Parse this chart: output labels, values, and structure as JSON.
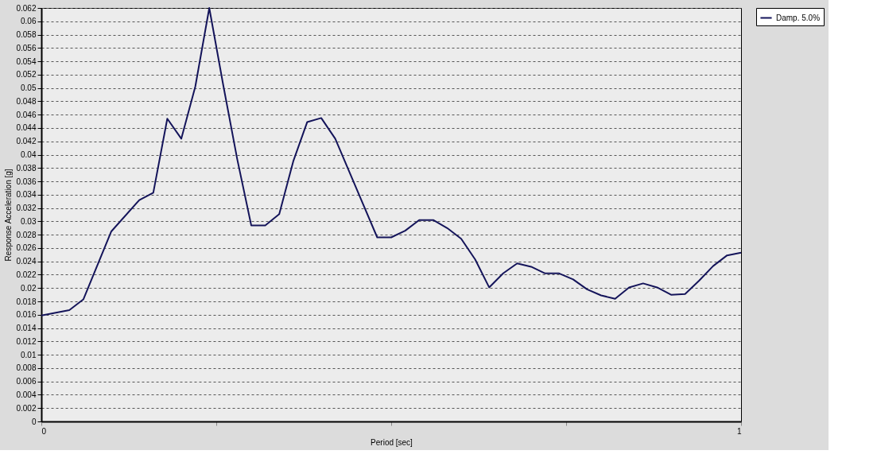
{
  "chart_data": {
    "type": "line",
    "xlabel": "Period [sec]",
    "ylabel": "Response Acceleration [g]",
    "xlim": [
      0,
      1
    ],
    "xticks": [
      0,
      {
        "value": 0.25,
        "label": null
      },
      {
        "value": 0.5,
        "label": null
      },
      {
        "value": 0.75,
        "label": null
      },
      1
    ],
    "ylim": [
      0,
      0.062
    ],
    "yticks": [
      0,
      0.002,
      0.004,
      0.006,
      0.008,
      0.01,
      0.012,
      0.014,
      0.016,
      0.018,
      0.02,
      0.022,
      0.024,
      0.026,
      0.028,
      0.03,
      0.032,
      0.034,
      0.036,
      0.038,
      0.04,
      0.042,
      0.044,
      0.046,
      0.048,
      0.05,
      0.052,
      0.054,
      0.056,
      0.058,
      0.06,
      0.062
    ],
    "grid": "y",
    "legend": "top right",
    "marker": "none",
    "line_style": "solid",
    "series": [
      {
        "name": "Damp. 5.0%",
        "color": "#14145a",
        "x": [
          0,
          0.04,
          0.06,
          0.1,
          0.14,
          0.16,
          0.18,
          0.2,
          0.22,
          0.24,
          0.26,
          0.28,
          0.3,
          0.32,
          0.34,
          0.36,
          0.38,
          0.4,
          0.42,
          0.48,
          0.5,
          0.52,
          0.54,
          0.56,
          0.58,
          0.6,
          0.62,
          0.64,
          0.66,
          0.68,
          0.7,
          0.72,
          0.74,
          0.76,
          0.78,
          0.8,
          0.82,
          0.84,
          0.86,
          0.88,
          0.9,
          0.92,
          0.94,
          0.96,
          0.98,
          1
        ],
        "values": [
          0.0159,
          0.0167,
          0.0183,
          0.0285,
          0.0332,
          0.0343,
          0.0454,
          0.0424,
          0.0502,
          0.062,
          0.0504,
          0.0393,
          0.0294,
          0.0294,
          0.0311,
          0.039,
          0.0449,
          0.0455,
          0.0424,
          0.0276,
          0.0276,
          0.0286,
          0.0302,
          0.0302,
          0.029,
          0.0274,
          0.0243,
          0.0201,
          0.0222,
          0.0237,
          0.0232,
          0.0222,
          0.0222,
          0.0213,
          0.0198,
          0.0189,
          0.0184,
          0.0201,
          0.0207,
          0.0201,
          0.019,
          0.0191,
          0.0211,
          0.0233,
          0.0249,
          0.0253
        ]
      }
    ]
  }
}
